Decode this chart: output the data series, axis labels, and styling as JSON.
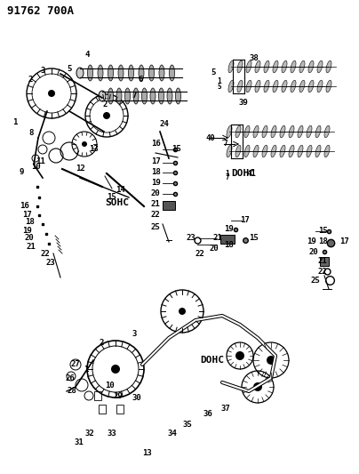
{
  "title": "91762 700A",
  "bg_color": "#ffffff",
  "line_color": "#000000",
  "text_color": "#000000",
  "fig_width": 4.04,
  "fig_height": 5.33,
  "dpi": 100,
  "labels": {
    "header": "91762 700A",
    "sohc": "SOHC",
    "dohc1": "DOHC",
    "dohc2": "DOHC"
  }
}
